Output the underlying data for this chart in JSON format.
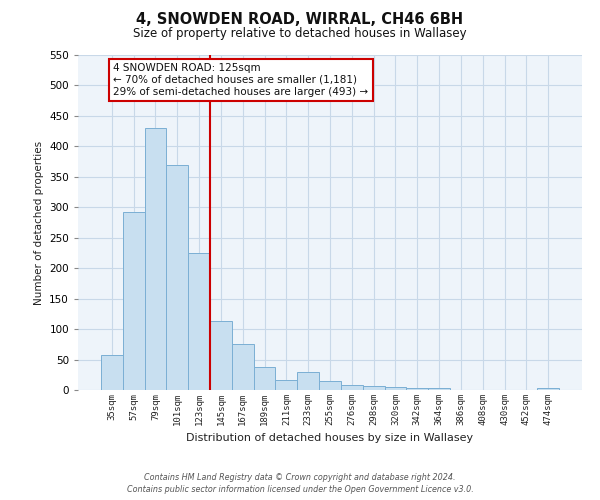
{
  "title": "4, SNOWDEN ROAD, WIRRAL, CH46 6BH",
  "subtitle": "Size of property relative to detached houses in Wallasey",
  "xlabel": "Distribution of detached houses by size in Wallasey",
  "ylabel": "Number of detached properties",
  "bar_labels": [
    "35sqm",
    "57sqm",
    "79sqm",
    "101sqm",
    "123sqm",
    "145sqm",
    "167sqm",
    "189sqm",
    "211sqm",
    "233sqm",
    "255sqm",
    "276sqm",
    "298sqm",
    "320sqm",
    "342sqm",
    "364sqm",
    "386sqm",
    "408sqm",
    "430sqm",
    "452sqm",
    "474sqm"
  ],
  "bar_values": [
    57,
    293,
    430,
    370,
    225,
    113,
    76,
    38,
    16,
    29,
    15,
    8,
    7,
    5,
    3,
    3,
    0,
    0,
    0,
    0,
    3
  ],
  "bar_color": "#c8dff0",
  "bar_edge_color": "#7bafd4",
  "vline_x_index": 4,
  "vline_color": "#cc0000",
  "annotation_title": "4 SNOWDEN ROAD: 125sqm",
  "annotation_line1": "← 70% of detached houses are smaller (1,181)",
  "annotation_line2": "29% of semi-detached houses are larger (493) →",
  "annotation_box_color": "#ffffff",
  "annotation_box_edge": "#cc0000",
  "ylim": [
    0,
    550
  ],
  "yticks": [
    0,
    50,
    100,
    150,
    200,
    250,
    300,
    350,
    400,
    450,
    500,
    550
  ],
  "footer_line1": "Contains HM Land Registry data © Crown copyright and database right 2024.",
  "footer_line2": "Contains public sector information licensed under the Open Government Licence v3.0.",
  "bg_color": "#ffffff",
  "plot_bg_color": "#eef4fa",
  "grid_color": "#c8d8e8"
}
